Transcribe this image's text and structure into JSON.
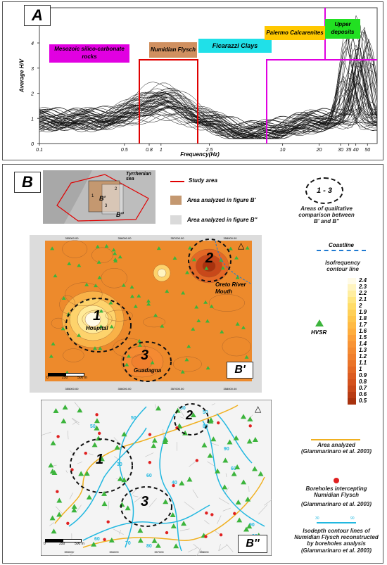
{
  "panelA": {
    "tag": "A",
    "ylabel": "Average H/V",
    "xlabel": "Frequency(Hz)",
    "yticks": [
      "0",
      "1",
      "2",
      "3",
      "4",
      "5"
    ],
    "xticks": [
      "0.1",
      "0.5",
      "0.8",
      "1",
      "2.5",
      "10",
      "20",
      "30",
      "35",
      "40",
      "50"
    ],
    "labels": {
      "mesozoic": "Mesozoic silico-carbonate rocks",
      "numidian": "Numidian Flysch",
      "ficarazzi": "Ficarazzi Clays",
      "palermo": "Palermo Calcarenites",
      "upper": "Upper deposits"
    },
    "colors": {
      "mesozoic": "#e100e1",
      "numidian": "#d09060",
      "ficarazzi": "#20e0e8",
      "palermo": "#ffc800",
      "upper": "#22e022",
      "boundary_red": "#e00000",
      "boundary_magenta": "#e000e0"
    }
  },
  "panelB": {
    "tag": "B",
    "inset": {
      "sea": "Tyrrhenian sea",
      "b1": "B'",
      "b2": "B''",
      "n1": "1",
      "n2": "2",
      "n3": "3"
    },
    "legend": {
      "study_area": "Study area",
      "area_b1": "Area analyzed in figure B'",
      "area_b2": "Area analyzed in figure B''",
      "circle_label": "1 - 3",
      "circle_text": "Areas of qualitative comparison between B' and B''",
      "coastline": "Coastline",
      "isofrequency": "Isofrequency contour line",
      "hvsr": "HVSR",
      "area_analyzed": "Area analyzed",
      "area_analyzed_ref": "(Giammarinaro et al. 2003)",
      "boreholes": "Boreholes intercepting Numidian Flysch",
      "boreholes_ref": "(Giammarinaro et al. 2003)",
      "isodepth": "Isodepth contour lines of Numidian Flysch reconstructed by boreholes analysis",
      "isodepth_ref": "(Giammarinaro et al. 2003)",
      "isodepth_sample": [
        "30",
        "90"
      ]
    },
    "scale_values": [
      "2.4",
      "2.3",
      "2.2",
      "2.1",
      "2",
      "1.9",
      "1.8",
      "1.7",
      "1.6",
      "1.5",
      "1.4",
      "1.3",
      "1.2",
      "1.1",
      "1",
      "0.9",
      "0.8",
      "0.7",
      "0.6",
      "0.5"
    ],
    "scale_colors": [
      "#fffbe8",
      "#fff4c0",
      "#ffeea0",
      "#ffe680",
      "#ffdc68",
      "#ffd058",
      "#ffc64c",
      "#ffba44",
      "#ffae3e",
      "#fca03a",
      "#f89436",
      "#f48a32",
      "#f0802e",
      "#ea742a",
      "#e46826",
      "#dc5c22",
      "#d4521e",
      "#c8481a",
      "#b83c14",
      "#a8320e"
    ],
    "b1": {
      "label": "B'",
      "areas": [
        "1",
        "2",
        "3"
      ],
      "hospital": "Hospital",
      "oreto": "Oreto River Mouth",
      "guadagna": "Guadagna",
      "top_ticks": [
        "355000.00",
        "356000.00",
        "357000.00",
        "358000.00"
      ],
      "bottom_ticks": [
        "355000.00",
        "356000.00",
        "357000.00",
        "358000.00"
      ],
      "scale_bar": [
        "0",
        "250",
        "500 m"
      ]
    },
    "b2": {
      "label": "B''",
      "areas": [
        "1",
        "2",
        "3"
      ],
      "contour_labels": [
        "50",
        "50",
        "60",
        "50",
        "80",
        "30",
        "90",
        "60",
        "40",
        "60",
        "90",
        "90",
        "80",
        "70",
        "60"
      ],
      "bottom_ticks": [
        "355000",
        "356000",
        "357000",
        "358000",
        "359000"
      ],
      "scale_bar": [
        "0",
        "250",
        "500 m"
      ]
    }
  }
}
